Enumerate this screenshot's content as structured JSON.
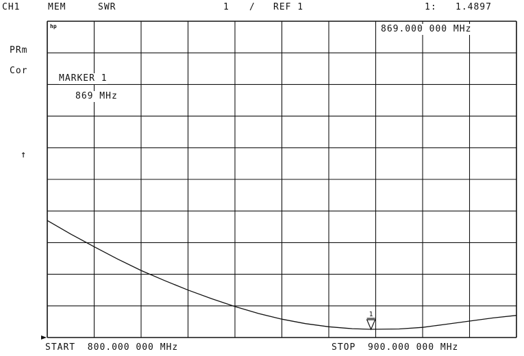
{
  "header": {
    "channel": "CH1",
    "memory": "MEM",
    "format": "SWR",
    "scale_value": "1",
    "scale_sep": "/",
    "reference": "REF 1",
    "marker_index": "1:",
    "marker_readout": "1.4897"
  },
  "marker_frequency_readout": "869.000 000 MHz",
  "left_annotations": {
    "prm": "PRm",
    "cor": "Cor",
    "ref_arrow": "↑"
  },
  "marker_box": {
    "title": "MARKER 1",
    "freq": "869 MHz"
  },
  "logo": "hp",
  "footer": {
    "start": "START  800.000 000 MHz",
    "stop": "STOP  900.000 000 MHz"
  },
  "marker_symbol_label": "1",
  "chart_data": {
    "type": "line",
    "x_unit": "MHz",
    "xlim": [
      800,
      900
    ],
    "y_divisions": 10,
    "x_divisions": 10,
    "grid": true,
    "x": [
      800,
      805,
      810,
      815,
      820,
      825,
      830,
      835,
      840,
      845,
      850,
      855,
      860,
      865,
      869,
      875,
      880,
      885,
      890,
      895,
      900
    ],
    "y_div": [
      3.7,
      3.27,
      2.87,
      2.48,
      2.12,
      1.8,
      1.5,
      1.23,
      0.98,
      0.76,
      0.58,
      0.44,
      0.34,
      0.28,
      0.26,
      0.27,
      0.32,
      0.42,
      0.52,
      0.62,
      0.7
    ],
    "marker": {
      "x": 869,
      "label": "1"
    },
    "colors": {
      "trace": "#111111",
      "grid": "#111111"
    }
  }
}
